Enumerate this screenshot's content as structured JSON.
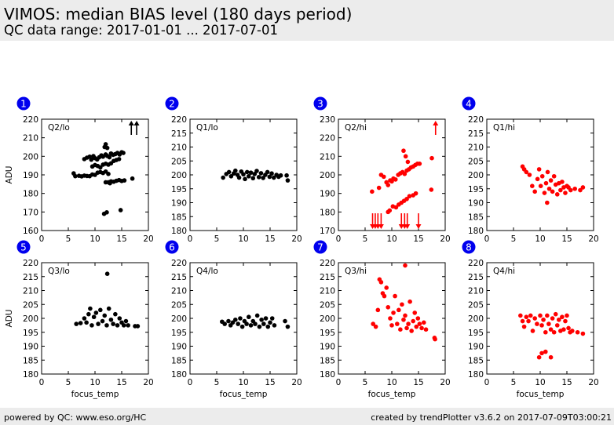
{
  "header": {
    "title": "VIMOS: median BIAS level (180 days period)",
    "subtitle": "QC data range: 2017-01-01 ... 2017-07-01"
  },
  "footer": {
    "left": "powered by QC: www.eso.org/HC",
    "right": "created by trendPlotter v3.6.2 on 2017-07-09T03:00:21"
  },
  "colors": {
    "black_series": "#000000",
    "red_series": "#ff0000",
    "badge": "#0000ee"
  },
  "chart_data": [
    {
      "type": "scatter",
      "panel_number": "1",
      "label": "Q2/lo",
      "color": "#000000",
      "xlabel": "",
      "ylabel": "ADU",
      "xlim": [
        0,
        20
      ],
      "ylim": [
        160,
        220
      ],
      "xticks": [
        0,
        5,
        10,
        15,
        20
      ],
      "yticks": [
        160,
        170,
        180,
        190,
        200,
        210,
        220
      ],
      "points": [
        [
          6.0,
          190.8
        ],
        [
          6.3,
          189.3
        ],
        [
          7.0,
          189.5
        ],
        [
          7.5,
          189.2
        ],
        [
          8.0,
          189.6
        ],
        [
          8.5,
          189.4
        ],
        [
          9.0,
          189.3
        ],
        [
          9.5,
          190.2
        ],
        [
          10.0,
          190.0
        ],
        [
          10.5,
          191.2
        ],
        [
          11.0,
          191.5
        ],
        [
          11.5,
          191.0
        ],
        [
          12.0,
          191.8
        ],
        [
          12.5,
          190.5
        ],
        [
          8.0,
          198.5
        ],
        [
          8.5,
          199.3
        ],
        [
          9.0,
          199.8
        ],
        [
          9.3,
          198.2
        ],
        [
          9.7,
          200.1
        ],
        [
          10.0,
          199.0
        ],
        [
          10.4,
          198.3
        ],
        [
          10.8,
          199.5
        ],
        [
          11.2,
          200.5
        ],
        [
          11.5,
          199.8
        ],
        [
          12.0,
          201.0
        ],
        [
          12.3,
          200.2
        ],
        [
          12.7,
          199.5
        ],
        [
          13.0,
          201.5
        ],
        [
          13.4,
          200.8
        ],
        [
          13.8,
          201.2
        ],
        [
          14.2,
          201.8
        ],
        [
          14.6,
          201.0
        ],
        [
          15.0,
          202.2
        ],
        [
          15.3,
          201.8
        ],
        [
          11.8,
          205.0
        ],
        [
          12.0,
          206.5
        ],
        [
          12.3,
          204.5
        ],
        [
          9.5,
          194.5
        ],
        [
          10.0,
          195.3
        ],
        [
          10.5,
          194.8
        ],
        [
          11.0,
          194.0
        ],
        [
          11.5,
          195.5
        ],
        [
          12.0,
          196.0
        ],
        [
          12.5,
          195.5
        ],
        [
          13.0,
          196.2
        ],
        [
          13.5,
          197.5
        ],
        [
          14.0,
          198.0
        ],
        [
          14.5,
          198.5
        ],
        [
          12.0,
          186.0
        ],
        [
          12.5,
          186.0
        ],
        [
          13.0,
          186.5
        ],
        [
          13.5,
          186.3
        ],
        [
          14.0,
          186.8
        ],
        [
          14.5,
          187.2
        ],
        [
          15.0,
          186.7
        ],
        [
          15.5,
          187.0
        ],
        [
          12.8,
          185.5
        ],
        [
          17.0,
          188.0
        ],
        [
          11.7,
          169.0
        ],
        [
          12.2,
          169.8
        ],
        [
          14.8,
          171.0
        ]
      ],
      "out_of_range_above": [
        16.8,
        17.8
      ],
      "out_of_range_below": []
    },
    {
      "type": "scatter",
      "panel_number": "2",
      "label": "Q1/lo",
      "color": "#000000",
      "xlabel": "",
      "ylabel": "",
      "xlim": [
        0,
        20
      ],
      "ylim": [
        180,
        220
      ],
      "xticks": [
        0,
        5,
        10,
        15,
        20
      ],
      "yticks": [
        180,
        185,
        190,
        195,
        200,
        205,
        210,
        215,
        220
      ],
      "points": [
        [
          6.2,
          199.0
        ],
        [
          6.8,
          200.3
        ],
        [
          7.3,
          201.0
        ],
        [
          7.7,
          199.5
        ],
        [
          8.2,
          200.5
        ],
        [
          8.5,
          201.5
        ],
        [
          8.9,
          200.0
        ],
        [
          9.2,
          199.0
        ],
        [
          9.6,
          201.2
        ],
        [
          10.0,
          200.2
        ],
        [
          10.3,
          198.5
        ],
        [
          10.7,
          201.0
        ],
        [
          11.0,
          199.5
        ],
        [
          11.4,
          200.8
        ],
        [
          11.8,
          198.8
        ],
        [
          12.1,
          200.3
        ],
        [
          12.5,
          201.4
        ],
        [
          12.9,
          199.2
        ],
        [
          13.3,
          200.6
        ],
        [
          13.7,
          198.9
        ],
        [
          14.1,
          200.0
        ],
        [
          14.5,
          201.0
        ],
        [
          14.9,
          199.3
        ],
        [
          15.3,
          200.5
        ],
        [
          15.7,
          199.0
        ],
        [
          16.2,
          200.0
        ],
        [
          16.6,
          199.3
        ],
        [
          17.0,
          199.8
        ],
        [
          18.1,
          199.8
        ],
        [
          18.3,
          198.0
        ]
      ],
      "out_of_range_above": [],
      "out_of_range_below": []
    },
    {
      "type": "scatter",
      "panel_number": "3",
      "label": "Q2/hi",
      "color": "#ff0000",
      "xlabel": "",
      "ylabel": "",
      "xlim": [
        0,
        20
      ],
      "ylim": [
        170,
        230
      ],
      "xticks": [
        0,
        5,
        10,
        15,
        20
      ],
      "yticks": [
        170,
        180,
        190,
        200,
        210,
        220,
        230
      ],
      "points": [
        [
          6.3,
          191.0
        ],
        [
          7.6,
          193.0
        ],
        [
          8.0,
          200.0
        ],
        [
          8.5,
          199.0
        ],
        [
          9.0,
          196.0
        ],
        [
          9.3,
          194.5
        ],
        [
          9.7,
          197.0
        ],
        [
          10.0,
          196.5
        ],
        [
          10.3,
          198.0
        ],
        [
          10.7,
          197.5
        ],
        [
          11.2,
          200.0
        ],
        [
          11.6,
          200.8
        ],
        [
          12.0,
          201.5
        ],
        [
          12.4,
          200.5
        ],
        [
          12.8,
          202.3
        ],
        [
          13.2,
          203.0
        ],
        [
          13.6,
          204.0
        ],
        [
          14.0,
          204.5
        ],
        [
          14.4,
          205.3
        ],
        [
          14.8,
          206.0
        ],
        [
          15.2,
          206.0
        ],
        [
          12.2,
          213.0
        ],
        [
          12.6,
          210.0
        ],
        [
          13.0,
          207.0
        ],
        [
          17.5,
          209.0
        ],
        [
          17.4,
          192.0
        ],
        [
          9.3,
          180.0
        ],
        [
          9.6,
          180.8
        ],
        [
          10.2,
          183.0
        ],
        [
          10.8,
          182.5
        ],
        [
          11.3,
          184.0
        ],
        [
          11.8,
          185.0
        ],
        [
          12.3,
          186.0
        ],
        [
          12.8,
          187.0
        ],
        [
          13.3,
          188.5
        ],
        [
          14.0,
          189.0
        ],
        [
          14.5,
          190.0
        ]
      ],
      "out_of_range_above": [
        18.2
      ],
      "out_of_range_below": [
        6.4,
        6.9,
        7.4,
        8.0,
        11.8,
        12.4,
        12.9,
        15.0
      ]
    },
    {
      "type": "scatter",
      "panel_number": "4",
      "label": "Q1/hi",
      "color": "#ff0000",
      "xlabel": "",
      "ylabel": "",
      "xlim": [
        0,
        20
      ],
      "ylim": [
        180,
        220
      ],
      "xticks": [
        0,
        5,
        10,
        15,
        20
      ],
      "yticks": [
        180,
        185,
        190,
        195,
        200,
        205,
        210,
        215,
        220
      ],
      "points": [
        [
          6.7,
          203.0
        ],
        [
          7.0,
          202.0
        ],
        [
          7.4,
          201.0
        ],
        [
          8.0,
          200.0
        ],
        [
          8.5,
          196.0
        ],
        [
          9.0,
          194.0
        ],
        [
          9.5,
          198.5
        ],
        [
          9.8,
          202.0
        ],
        [
          10.1,
          196.0
        ],
        [
          10.4,
          199.5
        ],
        [
          10.8,
          193.5
        ],
        [
          11.1,
          197.0
        ],
        [
          11.4,
          201.0
        ],
        [
          11.7,
          195.0
        ],
        [
          12.0,
          198.0
        ],
        [
          12.3,
          194.0
        ],
        [
          12.6,
          199.5
        ],
        [
          12.9,
          196.5
        ],
        [
          13.2,
          193.0
        ],
        [
          13.5,
          197.0
        ],
        [
          13.8,
          194.5
        ],
        [
          14.1,
          197.5
        ],
        [
          14.4,
          195.5
        ],
        [
          14.7,
          193.5
        ],
        [
          15.0,
          196.0
        ],
        [
          15.3,
          195.5
        ],
        [
          15.7,
          194.5
        ],
        [
          16.5,
          195.0
        ],
        [
          17.5,
          194.5
        ],
        [
          18.0,
          195.5
        ],
        [
          11.3,
          190.0
        ]
      ],
      "out_of_range_above": [],
      "out_of_range_below": []
    },
    {
      "type": "scatter",
      "panel_number": "5",
      "label": "Q3/lo",
      "color": "#000000",
      "xlabel": "focus_temp",
      "ylabel": "ADU",
      "xlim": [
        0,
        20
      ],
      "ylim": [
        180,
        220
      ],
      "xticks": [
        0,
        5,
        10,
        15,
        20
      ],
      "yticks": [
        180,
        185,
        190,
        195,
        200,
        205,
        210,
        215,
        220
      ],
      "points": [
        [
          6.5,
          198.0
        ],
        [
          7.3,
          198.3
        ],
        [
          8.0,
          200.0
        ],
        [
          8.4,
          198.5
        ],
        [
          8.8,
          201.5
        ],
        [
          9.1,
          203.5
        ],
        [
          9.4,
          197.5
        ],
        [
          9.8,
          200.5
        ],
        [
          10.2,
          202.0
        ],
        [
          10.6,
          198.0
        ],
        [
          11.0,
          203.0
        ],
        [
          11.4,
          199.0
        ],
        [
          11.8,
          201.0
        ],
        [
          12.2,
          197.5
        ],
        [
          12.6,
          203.5
        ],
        [
          13.0,
          199.5
        ],
        [
          13.4,
          198.0
        ],
        [
          13.8,
          201.5
        ],
        [
          14.2,
          197.5
        ],
        [
          14.6,
          200.0
        ],
        [
          15.0,
          198.5
        ],
        [
          15.4,
          197.5
        ],
        [
          15.8,
          199.0
        ],
        [
          16.2,
          197.5
        ],
        [
          17.5,
          197.2
        ],
        [
          18.0,
          197.2
        ],
        [
          12.3,
          216.0
        ]
      ],
      "out_of_range_above": [],
      "out_of_range_below": []
    },
    {
      "type": "scatter",
      "panel_number": "6",
      "label": "Q4/lo",
      "color": "#000000",
      "xlabel": "focus_temp",
      "ylabel": "",
      "xlim": [
        0,
        20
      ],
      "ylim": [
        180,
        220
      ],
      "xticks": [
        0,
        5,
        10,
        15,
        20
      ],
      "yticks": [
        180,
        185,
        190,
        195,
        200,
        205,
        210,
        215,
        220
      ],
      "points": [
        [
          6.0,
          198.8
        ],
        [
          6.5,
          198.0
        ],
        [
          7.2,
          199.0
        ],
        [
          7.6,
          197.5
        ],
        [
          8.0,
          198.5
        ],
        [
          8.5,
          199.5
        ],
        [
          9.0,
          198.0
        ],
        [
          9.4,
          200.0
        ],
        [
          9.8,
          197.0
        ],
        [
          10.2,
          199.0
        ],
        [
          10.6,
          198.0
        ],
        [
          11.0,
          200.5
        ],
        [
          11.4,
          197.5
        ],
        [
          11.8,
          199.0
        ],
        [
          12.2,
          198.0
        ],
        [
          12.6,
          201.0
        ],
        [
          13.0,
          197.0
        ],
        [
          13.4,
          199.5
        ],
        [
          13.8,
          198.0
        ],
        [
          14.2,
          200.0
        ],
        [
          14.6,
          197.0
        ],
        [
          15.0,
          198.5
        ],
        [
          15.4,
          200.0
        ],
        [
          15.8,
          197.5
        ],
        [
          17.8,
          199.0
        ],
        [
          18.3,
          197.0
        ]
      ],
      "out_of_range_above": [],
      "out_of_range_below": []
    },
    {
      "type": "scatter",
      "panel_number": "7",
      "label": "Q3/hi",
      "color": "#ff0000",
      "xlabel": "focus_temp",
      "ylabel": "",
      "xlim": [
        0,
        20
      ],
      "ylim": [
        180,
        220
      ],
      "xticks": [
        0,
        5,
        10,
        15,
        20
      ],
      "yticks": [
        180,
        185,
        190,
        195,
        200,
        205,
        210,
        215,
        220
      ],
      "points": [
        [
          6.5,
          198.0
        ],
        [
          7.0,
          197.0
        ],
        [
          7.4,
          203.0
        ],
        [
          7.7,
          214.0
        ],
        [
          8.0,
          213.0
        ],
        [
          8.3,
          209.0
        ],
        [
          8.6,
          208.0
        ],
        [
          9.0,
          211.0
        ],
        [
          9.3,
          204.0
        ],
        [
          9.7,
          200.0
        ],
        [
          10.0,
          197.5
        ],
        [
          10.3,
          202.0
        ],
        [
          10.6,
          208.0
        ],
        [
          11.0,
          198.0
        ],
        [
          11.3,
          203.0
        ],
        [
          11.6,
          196.0
        ],
        [
          11.9,
          205.0
        ],
        [
          12.2,
          199.5
        ],
        [
          12.5,
          201.0
        ],
        [
          12.8,
          196.5
        ],
        [
          13.1,
          198.0
        ],
        [
          13.4,
          206.0
        ],
        [
          13.7,
          195.5
        ],
        [
          14.0,
          199.0
        ],
        [
          14.3,
          202.0
        ],
        [
          14.6,
          197.0
        ],
        [
          14.9,
          200.0
        ],
        [
          15.2,
          198.0
        ],
        [
          15.6,
          196.5
        ],
        [
          16.0,
          198.5
        ],
        [
          16.4,
          196.0
        ],
        [
          12.5,
          219.0
        ],
        [
          18.0,
          193.0
        ],
        [
          18.1,
          192.5
        ]
      ],
      "out_of_range_above": [],
      "out_of_range_below": []
    },
    {
      "type": "scatter",
      "panel_number": "8",
      "label": "Q4/hi",
      "color": "#ff0000",
      "xlabel": "focus_temp",
      "ylabel": "",
      "xlim": [
        0,
        20
      ],
      "ylim": [
        180,
        220
      ],
      "xticks": [
        0,
        5,
        10,
        15,
        20
      ],
      "yticks": [
        180,
        185,
        190,
        195,
        200,
        205,
        210,
        215,
        220
      ],
      "points": [
        [
          6.3,
          201.0
        ],
        [
          6.7,
          199.0
        ],
        [
          7.0,
          197.0
        ],
        [
          7.4,
          200.5
        ],
        [
          7.8,
          199.0
        ],
        [
          8.2,
          201.0
        ],
        [
          8.6,
          195.5
        ],
        [
          9.0,
          200.0
        ],
        [
          9.4,
          198.0
        ],
        [
          9.8,
          186.0
        ],
        [
          10.0,
          201.0
        ],
        [
          10.3,
          197.5
        ],
        [
          10.6,
          199.5
        ],
        [
          11.0,
          195.0
        ],
        [
          11.3,
          201.0
        ],
        [
          11.6,
          198.0
        ],
        [
          12.0,
          196.0
        ],
        [
          12.3,
          200.0
        ],
        [
          12.6,
          195.0
        ],
        [
          12.9,
          201.5
        ],
        [
          13.2,
          197.5
        ],
        [
          13.5,
          199.5
        ],
        [
          13.8,
          195.5
        ],
        [
          14.1,
          200.5
        ],
        [
          14.4,
          196.0
        ],
        [
          14.7,
          199.0
        ],
        [
          15.0,
          201.0
        ],
        [
          15.3,
          196.5
        ],
        [
          15.6,
          195.0
        ],
        [
          16.0,
          195.5
        ],
        [
          17.0,
          195.0
        ],
        [
          18.0,
          194.5
        ],
        [
          10.3,
          187.5
        ],
        [
          11.0,
          188.0
        ],
        [
          12.0,
          186.0
        ]
      ],
      "out_of_range_above": [],
      "out_of_range_below": []
    }
  ]
}
